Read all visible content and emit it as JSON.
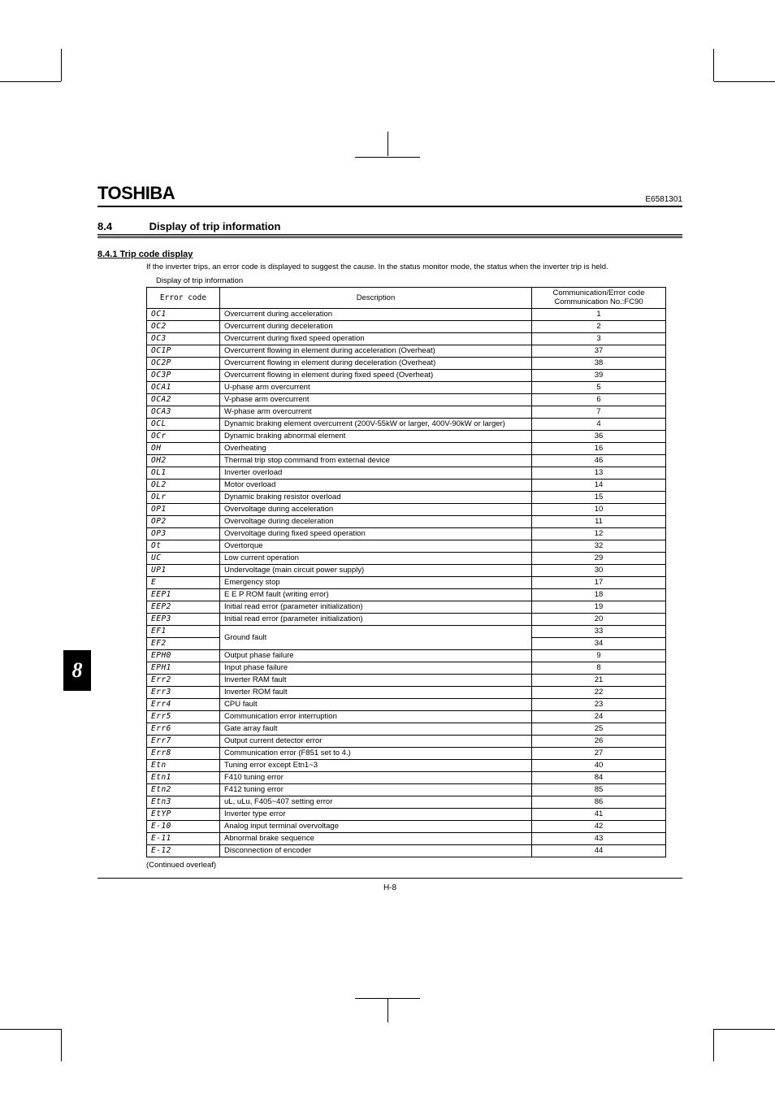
{
  "document": {
    "brand": "TOSHIBA",
    "doc_number": "E6581301",
    "page_label": "H-8"
  },
  "section": {
    "number": "8.4",
    "title": "Display of trip information"
  },
  "subsection": {
    "number": "8.4.1",
    "title": "Trip code display",
    "full": "8.4.1  Trip code display"
  },
  "body": {
    "intro": "If the inverter trips, an error code is displayed to suggest the cause. In the status monitor mode, the status when the inverter trip is held.",
    "caption": "Display of trip information"
  },
  "chapter_tab": "8",
  "table": {
    "headers": {
      "code": "Error code",
      "desc": "Description",
      "comm_line1": "Communication/Error code",
      "comm_line2": "Communication No.:FC90"
    },
    "rows": [
      {
        "code": "OC1",
        "desc": "Overcurrent during acceleration",
        "comm": "1"
      },
      {
        "code": "OC2",
        "desc": "Overcurrent during deceleration",
        "comm": "2"
      },
      {
        "code": "OC3",
        "desc": "Overcurrent during fixed speed operation",
        "comm": "3"
      },
      {
        "code": "OC1P",
        "desc": "Overcurrent flowing in element during acceleration (Overheat)",
        "comm": "37"
      },
      {
        "code": "OC2P",
        "desc": "Overcurrent flowing in element during deceleration (Overheat)",
        "comm": "38"
      },
      {
        "code": "OC3P",
        "desc": "Overcurrent flowing in element during fixed speed (Overheat)",
        "comm": "39"
      },
      {
        "code": "OCA1",
        "desc": "U-phase arm overcurrent",
        "comm": "5"
      },
      {
        "code": "OCA2",
        "desc": "V-phase arm overcurrent",
        "comm": "6"
      },
      {
        "code": "OCA3",
        "desc": "W-phase arm overcurrent",
        "comm": "7"
      },
      {
        "code": "OCL",
        "desc": "Dynamic braking element overcurrent (200V-55kW or larger, 400V-90kW or larger)",
        "comm": "4"
      },
      {
        "code": "OCr",
        "desc": "Dynamic braking abnormal element",
        "comm": "36"
      },
      {
        "code": "OH",
        "desc": "Overheating",
        "comm": "16"
      },
      {
        "code": "OH2",
        "desc": "Thermal trip stop command from external device",
        "comm": "46"
      },
      {
        "code": "OL1",
        "desc": "Inverter overload",
        "comm": "13"
      },
      {
        "code": "OL2",
        "desc": "Motor overload",
        "comm": "14"
      },
      {
        "code": "OLr",
        "desc": "Dynamic braking resistor overload",
        "comm": "15"
      },
      {
        "code": "OP1",
        "desc": "Overvoltage during acceleration",
        "comm": "10"
      },
      {
        "code": "OP2",
        "desc": "Overvoltage during deceleration",
        "comm": "11"
      },
      {
        "code": "OP3",
        "desc": "Overvoltage during fixed speed operation",
        "comm": "12"
      },
      {
        "code": "Ot",
        "desc": "Overtorque",
        "comm": "32"
      },
      {
        "code": "UC",
        "desc": "Low current operation",
        "comm": "29"
      },
      {
        "code": "UP1",
        "desc": "Undervoltage (main circuit power supply)",
        "comm": "30"
      },
      {
        "code": "E",
        "desc": "Emergency stop",
        "comm": "17"
      },
      {
        "code": "EEP1",
        "desc": "E E P ROM fault (writing error)",
        "comm": "18"
      },
      {
        "code": "EEP2",
        "desc": "Initial read error (parameter initialization)",
        "comm": "19"
      },
      {
        "code": "EEP3",
        "desc": "Initial read error (parameter initialization)",
        "comm": "20"
      },
      {
        "code": "EF1",
        "desc": "Ground fault",
        "comm": "33",
        "rowspan_desc": 2
      },
      {
        "code": "EF2",
        "desc": "",
        "comm": "34",
        "skip_desc": true
      },
      {
        "code": "EPH0",
        "desc": "Output phase failure",
        "comm": "9"
      },
      {
        "code": "EPH1",
        "desc": "Input phase failure",
        "comm": "8"
      },
      {
        "code": "Err2",
        "desc": "Inverter RAM fault",
        "comm": "21"
      },
      {
        "code": "Err3",
        "desc": "Inverter ROM fault",
        "comm": "22"
      },
      {
        "code": "Err4",
        "desc": "CPU fault",
        "comm": "23"
      },
      {
        "code": "Err5",
        "desc": "Communication error interruption",
        "comm": "24"
      },
      {
        "code": "Err6",
        "desc": "Gate array fault",
        "comm": "25"
      },
      {
        "code": "Err7",
        "desc": "Output current detector error",
        "comm": "26"
      },
      {
        "code": "Err8",
        "desc": "Communication error (F851 set to 4.)",
        "comm": "27"
      },
      {
        "code": "Etn",
        "desc": "Tuning error except Etn1~3",
        "comm": "40"
      },
      {
        "code": "Etn1",
        "desc": "F410 tuning error",
        "comm": "84"
      },
      {
        "code": "Etn2",
        "desc": "F412 tuning error",
        "comm": "85"
      },
      {
        "code": "Etn3",
        "desc": "uL, uLu, F405~407 setting error",
        "comm": "86"
      },
      {
        "code": "EtYP",
        "desc": "Inverter type error",
        "comm": "41"
      },
      {
        "code": "E-10",
        "desc": "Analog input terminal overvoltage",
        "comm": "42"
      },
      {
        "code": "E-11",
        "desc": "Abnormal brake sequence",
        "comm": "43"
      },
      {
        "code": "E-12",
        "desc": "Disconnection of encoder",
        "comm": "44"
      }
    ],
    "continued": "(Continued overleaf)"
  }
}
